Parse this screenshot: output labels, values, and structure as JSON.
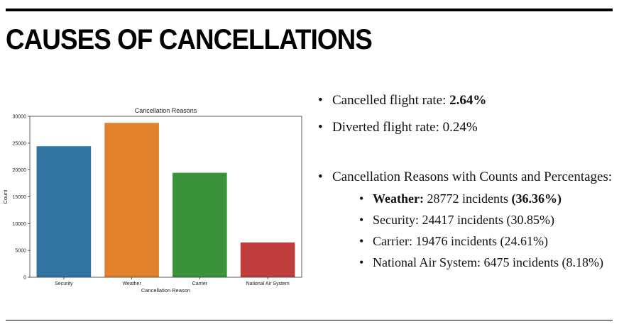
{
  "slide": {
    "title": "CAUSES OF CANCELLATIONS"
  },
  "bullets": {
    "cancelled_label": "Cancelled flight rate: ",
    "cancelled_value": "2.64%",
    "diverted": "Diverted flight rate: 0.24%",
    "reasons_heading": "Cancellation Reasons with Counts and Percentages:",
    "weather_label": "Weather:",
    "weather_count": " 28772 incidents ",
    "weather_pct": "(36.36%)",
    "security": "Security: 24417 incidents (30.85%)",
    "carrier": "Carrier: 19476 incidents (24.61%)",
    "nas": "National Air System: 6475 incidents (8.18%)"
  },
  "chart_data": {
    "type": "bar",
    "title": "Cancellation Reasons",
    "xlabel": "Cancellation Reason",
    "ylabel": "Count",
    "categories": [
      "Security",
      "Weather",
      "Carrier",
      "National Air System"
    ],
    "values": [
      24417,
      28772,
      19476,
      6475
    ],
    "colors": [
      "#3274a1",
      "#e1812c",
      "#3a923a",
      "#c03d3e"
    ],
    "ylim": [
      0,
      30000
    ],
    "yticks": [
      0,
      5000,
      10000,
      15000,
      20000,
      25000,
      30000
    ],
    "grid": false,
    "legend": "none"
  }
}
